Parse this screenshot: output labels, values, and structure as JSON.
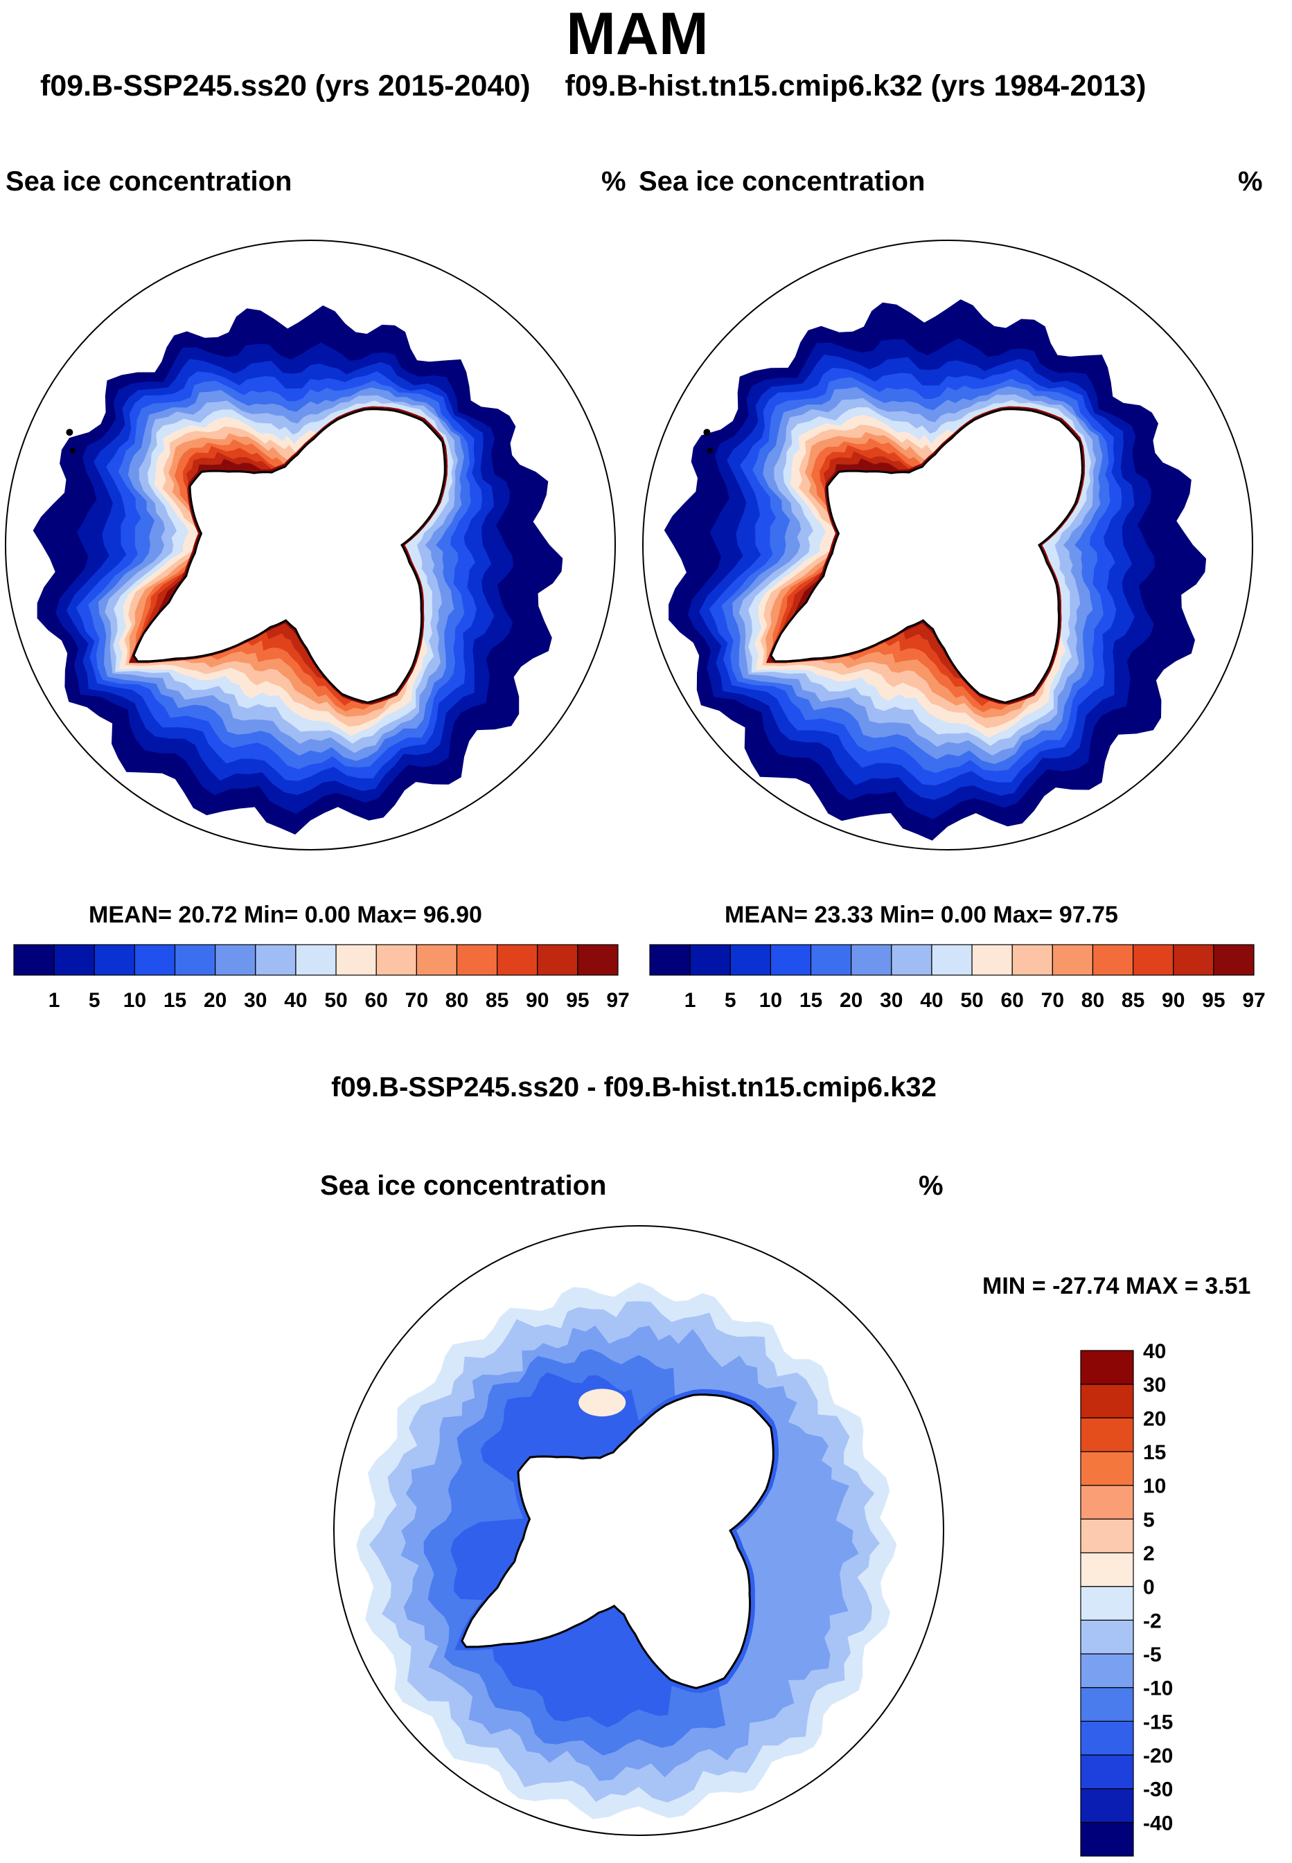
{
  "season": "MAM",
  "case_a_label": "f09.B-SSP245.ss20 (yrs 2015-2040)",
  "case_b_label": "f09.B-hist.tn15.cmip6.k32 (yrs 1984-2013)",
  "panels": [
    {
      "variable": "Sea ice concentration",
      "units": "%",
      "stats": "MEAN=  20.72  Min=    0.00  Max=  96.90"
    },
    {
      "variable": "Sea ice concentration",
      "units": "%",
      "stats": "MEAN=  23.33  Min=    0.00  Max=  97.75"
    }
  ],
  "diff": {
    "title": "f09.B-SSP245.ss20 - f09.B-hist.tn15.cmip6.k32",
    "variable": "Sea ice concentration",
    "units": "%",
    "minmax": "MIN = -27.74 MAX =    3.51"
  },
  "chart_data": [
    {
      "type": "map",
      "title": "Sea ice concentration",
      "projection": "south polar stereographic",
      "units": "%",
      "mean": 20.72,
      "min": 0.0,
      "max": 96.9,
      "levels": [
        1,
        5,
        10,
        15,
        20,
        30,
        40,
        50,
        60,
        70,
        80,
        85,
        90,
        95,
        97
      ],
      "colors": [
        "#00007a",
        "#0014a8",
        "#0a32d2",
        "#2050ee",
        "#3c6ef0",
        "#6e96ee",
        "#a0bcf4",
        "#d2e4fa",
        "#fde8d8",
        "#fcc4a4",
        "#f89868",
        "#f36c3c",
        "#e0421c",
        "#c02810",
        "#8a0a0a"
      ]
    },
    {
      "type": "map",
      "title": "Sea ice concentration",
      "projection": "south polar stereographic",
      "units": "%",
      "mean": 23.33,
      "min": 0.0,
      "max": 97.75,
      "levels": [
        1,
        5,
        10,
        15,
        20,
        30,
        40,
        50,
        60,
        70,
        80,
        85,
        90,
        95,
        97
      ],
      "colors": [
        "#00007a",
        "#0014a8",
        "#0a32d2",
        "#2050ee",
        "#3c6ef0",
        "#6e96ee",
        "#a0bcf4",
        "#d2e4fa",
        "#fde8d8",
        "#fcc4a4",
        "#f89868",
        "#f36c3c",
        "#e0421c",
        "#c02810",
        "#8a0a0a"
      ]
    },
    {
      "type": "map",
      "title": "f09.B-SSP245.ss20 - f09.B-hist.tn15.cmip6.k32",
      "projection": "south polar stereographic",
      "units": "%",
      "min": -27.74,
      "max": 3.51,
      "levels": [
        -40,
        -30,
        -20,
        -15,
        -10,
        -5,
        -2,
        0,
        2,
        5,
        10,
        15,
        20,
        30,
        40
      ],
      "colors": [
        "#00007a",
        "#0a1eb4",
        "#1e40dc",
        "#3060ec",
        "#4a7cee",
        "#7aa0f2",
        "#a8c4f6",
        "#d8e8fb",
        "#fdebdc",
        "#fccaae",
        "#fa9e76",
        "#f4783e",
        "#e44e1c",
        "#c42a0c",
        "#8c0606"
      ]
    }
  ]
}
